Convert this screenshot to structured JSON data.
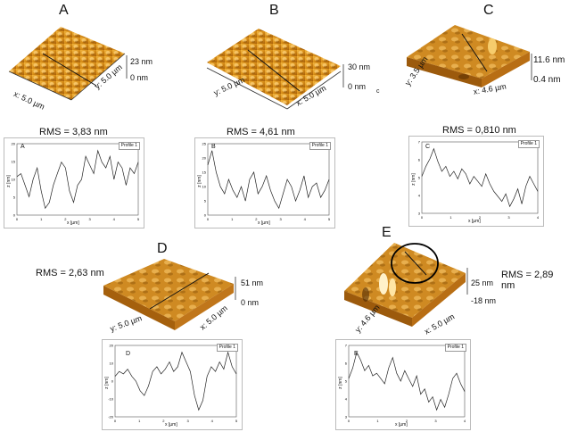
{
  "panels": [
    {
      "letter": "A",
      "rms": "RMS = 3,83 nm",
      "x_axis": "x: 5.0 µm",
      "y_axis": "y: 5.0 µm",
      "z_top": "23 nm",
      "z_bottom": "0 nm",
      "legend": "Profile 1",
      "profile_letter": "A",
      "ylabel": "z [nm]",
      "xlabel": "x [µm]",
      "yticks": [
        "20",
        "15",
        "10",
        "5",
        "0"
      ],
      "xticks": [
        "0",
        "1",
        "2",
        "3",
        "4",
        "5"
      ],
      "profile": [
        15,
        16,
        12,
        8,
        14,
        18,
        10,
        4,
        6,
        12,
        16,
        20,
        18,
        10,
        6,
        12,
        14,
        22,
        19,
        16,
        24,
        20,
        18,
        22,
        14,
        20,
        18,
        12,
        18,
        16,
        20
      ]
    },
    {
      "letter": "B",
      "rms": "RMS = 4,61 nm",
      "x_axis": "x: 5.0 µm",
      "y_axis": "y: 5.0 µm",
      "z_top": "30 nm",
      "z_bottom": "0 nm",
      "extra": "c",
      "legend": "Profile 1",
      "profile_letter": "B",
      "ylabel": "z [nm]",
      "xlabel": "x [µm]",
      "yticks": [
        "25",
        "20",
        "15",
        "10",
        "5",
        "0"
      ],
      "xticks": [
        "0",
        "1",
        "2",
        "3",
        "4",
        "5"
      ],
      "profile": [
        22,
        26,
        20,
        16,
        14,
        18,
        15,
        13,
        16,
        12,
        18,
        20,
        14,
        16,
        19,
        15,
        12,
        10,
        14,
        18,
        16,
        12,
        15,
        19,
        13,
        16,
        17,
        13,
        15,
        18
      ]
    },
    {
      "letter": "C",
      "rms": "RMS = 0,810 nm",
      "x_axis": "x: 4.6 µm",
      "y_axis": "y: 3.5 µm",
      "z_top": "11.6 nm",
      "z_bottom": "0.4 nm",
      "legend": "Profile 1",
      "profile_letter": "C",
      "ylabel": "z [nm]",
      "xlabel": "x [µm]",
      "yticks": [
        "7",
        "6",
        "5",
        "4",
        "3"
      ],
      "xticks": [
        "0",
        "1",
        "2",
        "3",
        "4"
      ],
      "profile": [
        4.8,
        5.2,
        5.5,
        5.9,
        5.4,
        5.0,
        5.2,
        4.8,
        5.0,
        4.7,
        5.1,
        4.9,
        4.5,
        4.8,
        4.6,
        4.4,
        4.9,
        4.5,
        4.2,
        4.0,
        3.8,
        4.1,
        3.6,
        3.9,
        4.3,
        3.7,
        4.4,
        4.8,
        4.5,
        4.2
      ]
    },
    {
      "letter": "D",
      "rms": "RMS = 2,63 nm",
      "x_axis": "x: 5.0 µm",
      "y_axis": "y: 5.0 µm",
      "z_top": "51 nm",
      "z_bottom": "0 nm",
      "legend": "Profile 1",
      "profile_letter": "D",
      "ylabel": "z [nm]",
      "xlabel": "x [µm]",
      "yticks": [
        "20",
        "10",
        "0",
        "-10",
        "-20"
      ],
      "xticks": [
        "0",
        "1",
        "2",
        "3",
        "4",
        "5"
      ],
      "profile": [
        2,
        4,
        3,
        5,
        2,
        0,
        -4,
        -6,
        -2,
        4,
        6,
        3,
        5,
        8,
        4,
        6,
        12,
        8,
        4,
        -6,
        -12,
        -8,
        2,
        6,
        4,
        8,
        5,
        12,
        6,
        3
      ]
    },
    {
      "letter": "E",
      "rms": "RMS = 2,89 nm",
      "x_axis": "x: 5.0 µm",
      "y_axis": "y: 4.6 µm",
      "z_top": "25 nm",
      "z_bottom": "-18 nm",
      "legend": "Profile 1",
      "profile_letter": "E",
      "ylabel": "z [nm]",
      "xlabel": "x [µm]",
      "yticks": [
        "7",
        "6",
        "5",
        "4",
        "3"
      ],
      "xticks": [
        "0",
        "1",
        "2",
        "3",
        "4"
      ],
      "profile": [
        4.8,
        5.2,
        5.8,
        5.5,
        5.1,
        5.3,
        4.9,
        5.0,
        4.8,
        4.6,
        5.2,
        5.6,
        5.0,
        4.7,
        5.1,
        4.8,
        4.5,
        4.9,
        4.2,
        4.4,
        3.9,
        4.1,
        3.6,
        4.0,
        3.7,
        4.2,
        4.8,
        5.0,
        4.6,
        4.3
      ]
    }
  ]
}
